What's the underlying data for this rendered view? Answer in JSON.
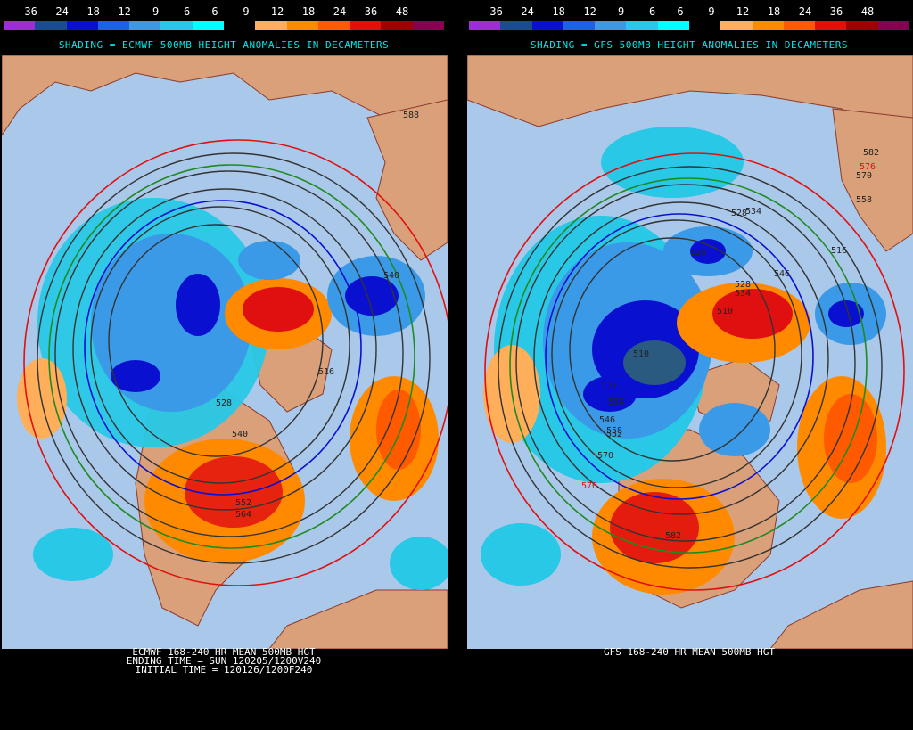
{
  "scale": {
    "labels": [
      "-36",
      "-24",
      "-18",
      "-12",
      "-9",
      "-6",
      "6",
      "9",
      "12",
      "18",
      "24",
      "36",
      "48"
    ],
    "colors": [
      "#9b2fd6",
      "#1b4c8c",
      "#0a10d0",
      "#2060e8",
      "#3a9ae8",
      "#28c8e6",
      "#00ffff",
      "#000000",
      "#ffae5a",
      "#ff8a00",
      "#ff5a00",
      "#e01010",
      "#a00000",
      "#8a0050"
    ]
  },
  "panels": [
    {
      "id": "ecmwf",
      "title": "SHADING = ECMWF 500MB HEIGHT ANOMALIES IN DECAMETERS",
      "footer": [
        "ECMWF 168-240 HR MEAN 500MB HGT",
        "ENDING TIME = SUN 120205/1200V240",
        "INITIAL TIME = 120126/1200F240"
      ],
      "contour_labels": [
        "588",
        "540",
        "516",
        "528",
        "540",
        "552",
        "564"
      ]
    },
    {
      "id": "gfs",
      "title": "SHADING = GFS 500MB HEIGHT ANOMALIES IN DECAMETERS",
      "footer": [
        "GFS 168-240 HR MEAN 500MB HGT"
      ],
      "contour_labels": [
        "582",
        "576",
        "570",
        "558",
        "528",
        "534",
        "516",
        "528",
        "522",
        "534",
        "546",
        "552",
        "558",
        "570",
        "576",
        "510",
        "546",
        "528",
        "534",
        "582",
        "510"
      ]
    }
  ],
  "colors": {
    "ocean": "#a9c8ea",
    "land": "#d9a07a",
    "background": "#000000",
    "title": "#00e8e8"
  }
}
